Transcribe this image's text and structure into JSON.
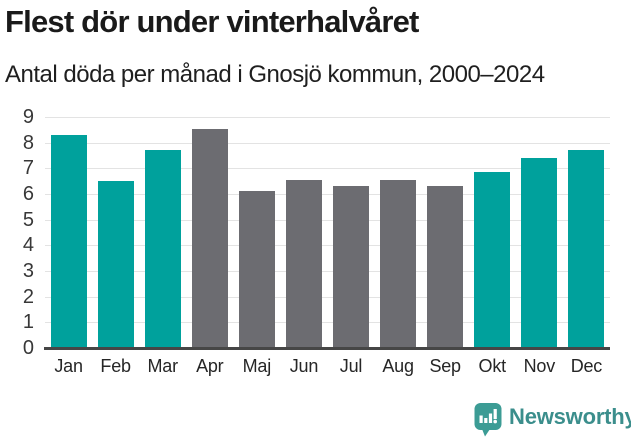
{
  "header": {
    "title": "Flest dör under vinterhalvåret",
    "subtitle": "Antal döda per månad i Gnosjö kommun, 2000–2024"
  },
  "chart_data": {
    "type": "bar",
    "title": "Flest dör under vinterhalvåret",
    "subtitle": "Antal döda per månad i Gnosjö kommun, 2000–2024",
    "categories": [
      "Jan",
      "Feb",
      "Mar",
      "Apr",
      "Maj",
      "Jun",
      "Jul",
      "Aug",
      "Sep",
      "Okt",
      "Nov",
      "Dec"
    ],
    "values": [
      8.3,
      6.5,
      7.7,
      8.55,
      6.1,
      6.55,
      6.3,
      6.55,
      6.3,
      6.85,
      7.4,
      7.7
    ],
    "series_groups": [
      "winter",
      "winter",
      "winter",
      "summer",
      "summer",
      "summer",
      "summer",
      "summer",
      "summer",
      "winter",
      "winter",
      "winter"
    ],
    "xlabel": "",
    "ylabel": "",
    "ylim": [
      0,
      9
    ],
    "yticks": [
      0,
      1,
      2,
      3,
      4,
      5,
      6,
      7,
      8,
      9
    ],
    "grid": true,
    "legend": "none",
    "group_colors": {
      "winter": "#00a19c",
      "summer": "#6c6c71"
    }
  },
  "style_colors": {
    "gridline": "#e3e3e3",
    "axis_line": "#464646",
    "title_text": "#1a1a1a",
    "tick_text": "#383838"
  },
  "footer": {
    "brand": "Newsworthy",
    "logo_icon": "newsworthy-speech-bubble-bar-chart-icon",
    "icon_color": "#3c9c95",
    "brand_color": "#3b8e8c"
  }
}
